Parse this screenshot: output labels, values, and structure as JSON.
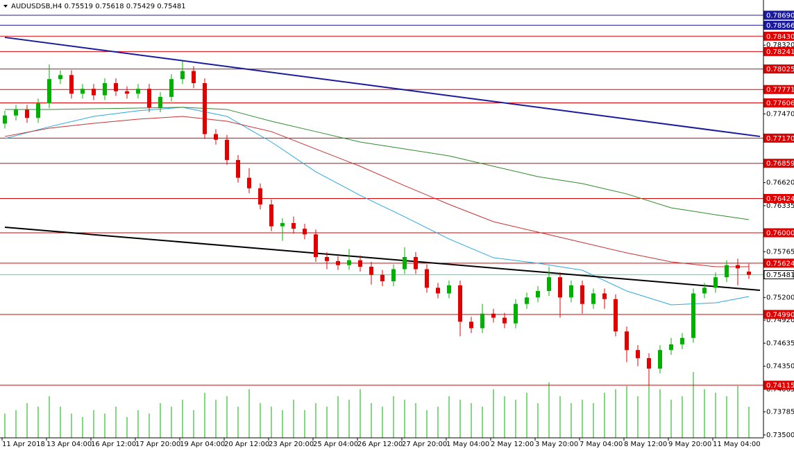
{
  "chart_data": {
    "type": "candlestick",
    "title": "AUDUSDSB,H4 0.75519 0.75618 0.75429 0.75481",
    "up_color": "#00b000",
    "down_color": "#e00000",
    "volume_color": "#00b000",
    "ylim": [
      0.7343,
      0.78878
    ],
    "yticks": [
      {
        "value": 0.7832,
        "label": "0.78320"
      },
      {
        "value": 0.7747,
        "label": "0.77470"
      },
      {
        "value": 0.7662,
        "label": "0.76620"
      },
      {
        "value": 0.76335,
        "label": "0.76335"
      },
      {
        "value": 0.75765,
        "label": "0.75765"
      },
      {
        "value": 0.752,
        "label": "0.75200"
      },
      {
        "value": 0.7492,
        "label": "0.74920"
      },
      {
        "value": 0.74635,
        "label": "0.74635"
      },
      {
        "value": 0.7435,
        "label": "0.74350"
      },
      {
        "value": 0.74065,
        "label": "0.74065"
      },
      {
        "value": 0.73785,
        "label": "0.73785"
      },
      {
        "value": 0.735,
        "label": "0.73500"
      }
    ],
    "xlabels": [
      "11 Apr 2018",
      "13 Apr 04:00",
      "16 Apr 12:00",
      "17 Apr 20:00",
      "19 Apr 04:00",
      "20 Apr 12:00",
      "23 Apr 20:00",
      "25 Apr 04:00",
      "26 Apr 12:00",
      "27 Apr 20:00",
      "1 May 04:00",
      "2 May 12:00",
      "3 May 20:00",
      "7 May 04:00",
      "8 May 12:00",
      "9 May 20:00",
      "11 May 04:00"
    ],
    "ohlc": [
      [
        0.7735,
        0.7751,
        0.7729,
        0.7745
      ],
      [
        0.7745,
        0.7758,
        0.7739,
        0.7752
      ],
      [
        0.7752,
        0.7758,
        0.7736,
        0.7742
      ],
      [
        0.7742,
        0.7766,
        0.7736,
        0.776
      ],
      [
        0.776,
        0.7808,
        0.7754,
        0.779
      ],
      [
        0.779,
        0.7801,
        0.7784,
        0.7795
      ],
      [
        0.7795,
        0.7801,
        0.7766,
        0.7772
      ],
      [
        0.7772,
        0.7784,
        0.7766,
        0.7778
      ],
      [
        0.7778,
        0.7784,
        0.7764,
        0.777
      ],
      [
        0.777,
        0.7791,
        0.7764,
        0.7785
      ],
      [
        0.7785,
        0.7791,
        0.7769,
        0.7775
      ],
      [
        0.7775,
        0.7781,
        0.7766,
        0.7772
      ],
      [
        0.7772,
        0.7784,
        0.7766,
        0.7778
      ],
      [
        0.7778,
        0.7784,
        0.7749,
        0.7755
      ],
      [
        0.7755,
        0.7774,
        0.7749,
        0.7768
      ],
      [
        0.7768,
        0.7796,
        0.7762,
        0.779
      ],
      [
        0.779,
        0.7812,
        0.7784,
        0.78
      ],
      [
        0.78,
        0.7806,
        0.7779,
        0.7785
      ],
      [
        0.7785,
        0.7791,
        0.7716,
        0.7722
      ],
      [
        0.7722,
        0.7728,
        0.7709,
        0.7715
      ],
      [
        0.7715,
        0.7721,
        0.7684,
        0.769
      ],
      [
        0.769,
        0.7696,
        0.7662,
        0.7668
      ],
      [
        0.7668,
        0.768,
        0.7649,
        0.7655
      ],
      [
        0.7655,
        0.7661,
        0.7629,
        0.7635
      ],
      [
        0.7635,
        0.7641,
        0.7602,
        0.7608
      ],
      [
        0.7608,
        0.7618,
        0.759,
        0.7612
      ],
      [
        0.7612,
        0.762,
        0.7599,
        0.7605
      ],
      [
        0.7605,
        0.7611,
        0.7592,
        0.7598
      ],
      [
        0.7598,
        0.7604,
        0.7564,
        0.757
      ],
      [
        0.757,
        0.7576,
        0.7555,
        0.7565
      ],
      [
        0.7565,
        0.7571,
        0.7554,
        0.756
      ],
      [
        0.756,
        0.758,
        0.7554,
        0.7566
      ],
      [
        0.7566,
        0.7572,
        0.7552,
        0.7558
      ],
      [
        0.7558,
        0.7564,
        0.7536,
        0.7548
      ],
      [
        0.7548,
        0.7554,
        0.7534,
        0.754
      ],
      [
        0.754,
        0.7561,
        0.7534,
        0.7555
      ],
      [
        0.7555,
        0.7582,
        0.7549,
        0.757
      ],
      [
        0.757,
        0.7576,
        0.7549,
        0.7555
      ],
      [
        0.7555,
        0.7561,
        0.7526,
        0.7532
      ],
      [
        0.7532,
        0.7538,
        0.7519,
        0.7525
      ],
      [
        0.7525,
        0.7541,
        0.7519,
        0.7535
      ],
      [
        0.7535,
        0.7541,
        0.7472,
        0.749
      ],
      [
        0.749,
        0.7496,
        0.7476,
        0.7482
      ],
      [
        0.7482,
        0.7512,
        0.7476,
        0.75
      ],
      [
        0.75,
        0.7506,
        0.7489,
        0.7495
      ],
      [
        0.7495,
        0.7501,
        0.7482,
        0.7488
      ],
      [
        0.7488,
        0.7518,
        0.7482,
        0.7512
      ],
      [
        0.7512,
        0.7526,
        0.7506,
        0.752
      ],
      [
        0.752,
        0.7534,
        0.7514,
        0.7528
      ],
      [
        0.7528,
        0.7558,
        0.7522,
        0.7545
      ],
      [
        0.7545,
        0.7551,
        0.7495,
        0.752
      ],
      [
        0.752,
        0.7541,
        0.7514,
        0.7535
      ],
      [
        0.7535,
        0.7541,
        0.75,
        0.7512
      ],
      [
        0.7512,
        0.7531,
        0.7506,
        0.7525
      ],
      [
        0.7525,
        0.7531,
        0.7506,
        0.7518
      ],
      [
        0.7518,
        0.7524,
        0.7472,
        0.7478
      ],
      [
        0.7478,
        0.7484,
        0.744,
        0.7455
      ],
      [
        0.7455,
        0.7461,
        0.7435,
        0.7445
      ],
      [
        0.7445,
        0.7451,
        0.7412,
        0.7432
      ],
      [
        0.7432,
        0.7461,
        0.7426,
        0.7455
      ],
      [
        0.7455,
        0.747,
        0.7449,
        0.7462
      ],
      [
        0.7462,
        0.7476,
        0.7456,
        0.747
      ],
      [
        0.747,
        0.7531,
        0.7464,
        0.7525
      ],
      [
        0.7525,
        0.7538,
        0.7519,
        0.7532
      ],
      [
        0.7532,
        0.7551,
        0.7526,
        0.7545
      ],
      [
        0.7545,
        0.7566,
        0.7539,
        0.756
      ],
      [
        0.756,
        0.7568,
        0.7535,
        0.7556
      ],
      [
        0.75519,
        0.75618,
        0.75429,
        0.75481
      ]
    ],
    "volume_ylim": [
      0,
      100
    ],
    "volume": [
      35,
      40,
      50,
      45,
      60,
      45,
      35,
      30,
      40,
      35,
      45,
      30,
      40,
      35,
      50,
      45,
      55,
      40,
      65,
      55,
      60,
      45,
      70,
      50,
      45,
      40,
      55,
      40,
      50,
      45,
      60,
      55,
      70,
      50,
      45,
      60,
      55,
      50,
      40,
      45,
      60,
      55,
      50,
      45,
      70,
      60,
      55,
      65,
      50,
      80,
      60,
      50,
      55,
      50,
      65,
      70,
      75,
      60,
      85,
      70,
      55,
      60,
      95,
      70,
      65,
      60,
      75,
      45
    ],
    "ma": [
      {
        "color": "#29a9e0",
        "x": [
          0,
          4,
          8,
          12,
          16,
          20,
          24,
          28,
          32,
          36,
          40,
          44,
          48,
          52,
          56,
          60,
          64,
          67
        ],
        "values": [
          0.77165,
          0.77311,
          0.77439,
          0.77508,
          0.77551,
          0.77439,
          0.77122,
          0.76754,
          0.76462,
          0.76197,
          0.75923,
          0.75691,
          0.75623,
          0.75537,
          0.7528,
          0.75109,
          0.75134,
          0.75212
        ]
      },
      {
        "color": "#c83232",
        "x": [
          0,
          4,
          8,
          12,
          16,
          20,
          24,
          28,
          32,
          36,
          40,
          44,
          48,
          52,
          56,
          60,
          64,
          67
        ],
        "values": [
          0.77191,
          0.77293,
          0.77353,
          0.77405,
          0.77439,
          0.77379,
          0.77251,
          0.77036,
          0.76822,
          0.76582,
          0.76351,
          0.76137,
          0.76008,
          0.7588,
          0.75751,
          0.7564,
          0.7558,
          0.7558
        ]
      },
      {
        "color": "#2e8b2e",
        "x": [
          0,
          4,
          8,
          12,
          16,
          20,
          24,
          28,
          32,
          36,
          40,
          44,
          48,
          52,
          56,
          60,
          64,
          67
        ],
        "values": [
          0.77525,
          0.77525,
          0.77533,
          0.77542,
          0.77551,
          0.77525,
          0.77379,
          0.77251,
          0.77122,
          0.77036,
          0.76951,
          0.76822,
          0.76694,
          0.76608,
          0.7648,
          0.76308,
          0.76223,
          0.76163
        ]
      }
    ],
    "trendlines": [
      {
        "color": "#1a1a9c",
        "x": [
          0,
          68
        ],
        "values": [
          0.78416,
          0.77191
        ]
      },
      {
        "color": "#000000",
        "x": [
          0,
          68
        ],
        "values": [
          0.76068,
          0.75289
        ]
      }
    ],
    "levels": [
      {
        "value": 0.7869,
        "label": "0.78690",
        "color": "#1a1a9c"
      },
      {
        "value": 0.78566,
        "label": "0.78566",
        "color": "#1a1a9c"
      },
      {
        "value": 0.7843,
        "label": "0.78430",
        "color": "#e00000"
      },
      {
        "value": 0.78241,
        "label": "0.78241",
        "color": "#e00000"
      },
      {
        "value": 0.78025,
        "label": "0.78025",
        "color": "#e00000"
      },
      {
        "value": 0.77771,
        "label": "0.77771",
        "color": "#e00000"
      },
      {
        "value": 0.77606,
        "label": "0.77606",
        "color": "#e00000"
      },
      {
        "value": 0.7717,
        "label": "0.77170",
        "color": "#e00000"
      },
      {
        "value": 0.76859,
        "label": "0.76859",
        "color": "#e00000"
      },
      {
        "value": 0.76424,
        "label": "0.76424",
        "color": "#e00000"
      },
      {
        "value": 0.76,
        "label": "0.76000",
        "color": "#e00000"
      },
      {
        "value": 0.75624,
        "label": "0.75624",
        "color": "#e00000"
      },
      {
        "value": 0.7499,
        "label": "0.74990",
        "color": "#e00000"
      },
      {
        "value": 0.74115,
        "label": "0.74115",
        "color": "#e00000"
      }
    ],
    "last_price": {
      "value": 0.75481,
      "label": "0.75481",
      "color": "#8fb0a0"
    }
  }
}
